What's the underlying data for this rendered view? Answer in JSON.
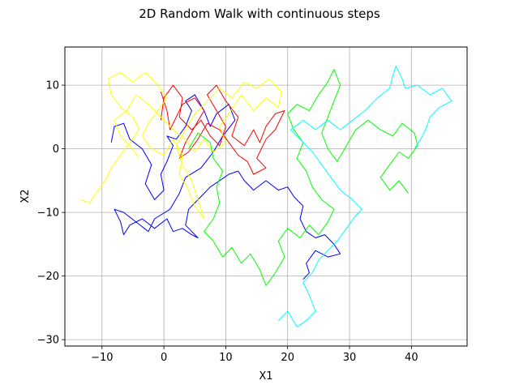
{
  "chart_data": {
    "type": "line",
    "title": "2D Random Walk with continuous steps",
    "xlabel": "X1",
    "ylabel": "X2",
    "xlim": [
      -16,
      49
    ],
    "ylim": [
      -31,
      16
    ],
    "xticks": [
      -10,
      0,
      10,
      20,
      30,
      40
    ],
    "yticks": [
      -30,
      -20,
      -10,
      0,
      10
    ],
    "grid": true,
    "series": [
      {
        "color": "#0000ff",
        "points": [
          [
            -8.5,
            1
          ],
          [
            -8,
            3.5
          ],
          [
            -6.5,
            4
          ],
          [
            -5.5,
            1.5
          ],
          [
            -3.5,
            0
          ],
          [
            -2,
            -2.5
          ],
          [
            -3,
            -5.5
          ],
          [
            -1.5,
            -8
          ],
          [
            0,
            -6.5
          ],
          [
            -0.5,
            -4
          ],
          [
            0.5,
            -2
          ],
          [
            1.5,
            0.5
          ],
          [
            0.5,
            2
          ],
          [
            2,
            1.5
          ],
          [
            3.5,
            3.5
          ],
          [
            4.5,
            6
          ],
          [
            3.5,
            7.5
          ],
          [
            5,
            8.5
          ],
          [
            6.5,
            6
          ],
          [
            7.5,
            3.5
          ],
          [
            8.5,
            5.5
          ],
          [
            10.5,
            7
          ],
          [
            11.5,
            4.5
          ],
          [
            9.5,
            2
          ],
          [
            8,
            -0.5
          ],
          [
            6,
            -3
          ],
          [
            3.5,
            -4.5
          ],
          [
            2.5,
            -7
          ],
          [
            1,
            -9.5
          ],
          [
            -1.5,
            -11
          ],
          [
            -2.5,
            -13
          ],
          [
            -4.5,
            -11.5
          ],
          [
            -6.5,
            -10
          ],
          [
            -8,
            -9.5
          ],
          [
            -7,
            -11.5
          ],
          [
            -6.5,
            -13.5
          ],
          [
            -5.5,
            -12
          ],
          [
            -3.5,
            -11
          ],
          [
            -1.5,
            -12.5
          ],
          [
            0.5,
            -11
          ],
          [
            1.5,
            -13
          ],
          [
            3,
            -12.5
          ],
          [
            4.5,
            -13.5
          ],
          [
            5.5,
            -14
          ],
          [
            3.5,
            -12
          ],
          [
            4,
            -9.5
          ],
          [
            6,
            -7.5
          ],
          [
            7.5,
            -6
          ],
          [
            9,
            -5
          ],
          [
            10.5,
            -4
          ],
          [
            12,
            -3.5
          ],
          [
            13,
            -5
          ],
          [
            14.5,
            -6.5
          ],
          [
            16.5,
            -5
          ],
          [
            18.5,
            -6.5
          ],
          [
            20,
            -6
          ],
          [
            21,
            -7.5
          ],
          [
            22.5,
            -9
          ],
          [
            22,
            -11
          ],
          [
            23,
            -13
          ],
          [
            24.5,
            -14
          ],
          [
            26,
            -13.5
          ],
          [
            27.5,
            -15
          ],
          [
            28.5,
            -16.5
          ],
          [
            26.5,
            -17
          ],
          [
            24.5,
            -16
          ],
          [
            23,
            -18
          ],
          [
            23.5,
            -19.5
          ],
          [
            22.5,
            -20.5
          ]
        ]
      },
      {
        "color": "#ff0000",
        "points": [
          [
            -0.5,
            4.5
          ],
          [
            0,
            8
          ],
          [
            1.5,
            10
          ],
          [
            3,
            8
          ],
          [
            2.5,
            5
          ],
          [
            4.5,
            3
          ],
          [
            6,
            4.5
          ],
          [
            7.5,
            2
          ],
          [
            9,
            0.5
          ],
          [
            10,
            3.5
          ],
          [
            8.5,
            6
          ],
          [
            7,
            8.5
          ],
          [
            8.5,
            10
          ],
          [
            10,
            7.5
          ],
          [
            12,
            5
          ],
          [
            11,
            2
          ],
          [
            13,
            0.5
          ],
          [
            14.5,
            3
          ],
          [
            15.5,
            1
          ],
          [
            16.5,
            3.5
          ],
          [
            18,
            5.5
          ],
          [
            19.5,
            6
          ],
          [
            18,
            3
          ],
          [
            16.5,
            1.5
          ],
          [
            15,
            -1.5
          ],
          [
            16.5,
            -3
          ],
          [
            14.5,
            -4
          ],
          [
            13.5,
            -2
          ],
          [
            12,
            -1
          ],
          [
            10.5,
            1
          ],
          [
            9,
            3
          ],
          [
            7,
            4
          ],
          [
            5.5,
            1.5
          ],
          [
            4,
            -0.5
          ],
          [
            2.5,
            -1.5
          ],
          [
            3.5,
            1
          ],
          [
            5,
            3.5
          ],
          [
            6.5,
            6
          ],
          [
            5,
            8
          ],
          [
            3,
            7
          ],
          [
            2,
            5
          ],
          [
            1,
            3
          ],
          [
            0.5,
            6
          ],
          [
            -0.5,
            9
          ]
        ]
      },
      {
        "color": "#ffff00",
        "points": [
          [
            -13.5,
            -8
          ],
          [
            -12,
            -8.5
          ],
          [
            -11,
            -7
          ],
          [
            -9.5,
            -5
          ],
          [
            -8.5,
            -3
          ],
          [
            -7,
            -1
          ],
          [
            -5.5,
            1
          ],
          [
            -4,
            3
          ],
          [
            -5,
            5
          ],
          [
            -7,
            6.5
          ],
          [
            -8.5,
            8.5
          ],
          [
            -9,
            11
          ],
          [
            -7,
            12
          ],
          [
            -5,
            10.5
          ],
          [
            -3,
            12
          ],
          [
            -1,
            10
          ],
          [
            0.5,
            8
          ],
          [
            -1,
            6
          ],
          [
            -2.5,
            4
          ],
          [
            -3.5,
            2
          ],
          [
            -2,
            0
          ],
          [
            0,
            -1
          ],
          [
            1.5,
            1.5
          ],
          [
            3,
            -1
          ],
          [
            2.5,
            -4
          ],
          [
            4,
            -6.5
          ],
          [
            5,
            -9
          ],
          [
            6.5,
            -11
          ],
          [
            5.5,
            -8
          ],
          [
            4.5,
            -5
          ],
          [
            3,
            -2.5
          ],
          [
            2,
            0.5
          ],
          [
            3.5,
            3
          ],
          [
            5,
            5.5
          ],
          [
            7,
            7.5
          ],
          [
            9,
            9.5
          ],
          [
            11,
            8
          ],
          [
            13,
            10.5
          ],
          [
            15,
            9.5
          ],
          [
            17,
            11
          ],
          [
            19,
            9
          ],
          [
            18.5,
            6.5
          ],
          [
            16.5,
            8
          ],
          [
            14.5,
            6
          ],
          [
            12.5,
            8.5
          ],
          [
            10.5,
            5.5
          ],
          [
            9,
            3.5
          ],
          [
            10,
            1
          ],
          [
            8,
            -0.5
          ],
          [
            6.5,
            1.5
          ],
          [
            5,
            -0.5
          ],
          [
            3.5,
            1.5
          ],
          [
            1.5,
            3
          ],
          [
            -0.5,
            5
          ],
          [
            -2.5,
            7
          ],
          [
            -4.5,
            8.5
          ],
          [
            -6,
            6
          ],
          [
            -8,
            4.5
          ],
          [
            -7,
            2
          ],
          [
            -5.5,
            0.5
          ],
          [
            -4,
            -1.5
          ]
        ]
      },
      {
        "color": "#00ff00",
        "points": [
          [
            4,
            0
          ],
          [
            5.5,
            2.5
          ],
          [
            7.5,
            1
          ],
          [
            8,
            -1.5
          ],
          [
            9.5,
            -3.5
          ],
          [
            8.5,
            -6
          ],
          [
            9,
            -8.5
          ],
          [
            8,
            -11
          ],
          [
            6.5,
            -13
          ],
          [
            8,
            -14.5
          ],
          [
            9.5,
            -17
          ],
          [
            11,
            -15.5
          ],
          [
            12.5,
            -18
          ],
          [
            14,
            -16.5
          ],
          [
            15.5,
            -19
          ],
          [
            16.5,
            -21.5
          ],
          [
            18,
            -19.5
          ],
          [
            19.5,
            -17
          ],
          [
            18.5,
            -14.5
          ],
          [
            20,
            -12.5
          ],
          [
            22,
            -14
          ],
          [
            23.5,
            -12
          ],
          [
            25,
            -13.5
          ],
          [
            26.5,
            -11.5
          ],
          [
            27.5,
            -9.5
          ],
          [
            25.5,
            -8
          ],
          [
            24,
            -6
          ],
          [
            23,
            -3.5
          ],
          [
            21.5,
            -1.5
          ],
          [
            22.5,
            1
          ],
          [
            21,
            3
          ],
          [
            20,
            5.5
          ],
          [
            21.5,
            7
          ],
          [
            23.5,
            6
          ],
          [
            25,
            8.5
          ],
          [
            26.5,
            10.5
          ],
          [
            27.5,
            12.5
          ],
          [
            28.5,
            10
          ],
          [
            27.5,
            7.5
          ],
          [
            26.5,
            5
          ],
          [
            25.5,
            2.5
          ],
          [
            26.5,
            0
          ],
          [
            28,
            -2
          ],
          [
            29.5,
            0.5
          ],
          [
            31,
            3
          ],
          [
            33,
            4.5
          ],
          [
            35,
            3
          ],
          [
            37,
            2
          ],
          [
            38.5,
            4
          ],
          [
            40.5,
            2.5
          ],
          [
            41,
            0.5
          ],
          [
            39.5,
            -1.5
          ],
          [
            38,
            -0.5
          ],
          [
            36.5,
            -2.5
          ],
          [
            35,
            -4.5
          ],
          [
            36.5,
            -6.5
          ],
          [
            38,
            -5
          ],
          [
            39.5,
            -7
          ]
        ]
      },
      {
        "color": "#00ffff",
        "points": [
          [
            18.5,
            -27
          ],
          [
            20,
            -25.5
          ],
          [
            21.5,
            -28
          ],
          [
            23,
            -27
          ],
          [
            24.5,
            -25.5
          ],
          [
            23.5,
            -23
          ],
          [
            22.5,
            -21
          ],
          [
            24,
            -19.5
          ],
          [
            25,
            -17.5
          ],
          [
            26.5,
            -16
          ],
          [
            28,
            -14.5
          ],
          [
            29.5,
            -12.5
          ],
          [
            31,
            -10.5
          ],
          [
            32,
            -9.5
          ],
          [
            30.5,
            -8
          ],
          [
            28.5,
            -6.5
          ],
          [
            27,
            -4.5
          ],
          [
            25.5,
            -2.5
          ],
          [
            24,
            -0.5
          ],
          [
            22,
            1.5
          ],
          [
            20.5,
            3
          ],
          [
            22.5,
            4.5
          ],
          [
            24.5,
            3
          ],
          [
            26.5,
            4.5
          ],
          [
            28.5,
            3
          ],
          [
            30.5,
            4.5
          ],
          [
            32.5,
            6
          ],
          [
            34.5,
            8
          ],
          [
            36.5,
            9.5
          ],
          [
            37,
            11.5
          ],
          [
            37.5,
            13
          ],
          [
            38.5,
            11
          ],
          [
            39,
            9.5
          ],
          [
            41,
            10
          ],
          [
            43,
            8.5
          ],
          [
            45,
            9.5
          ],
          [
            46.5,
            7.5
          ],
          [
            44.5,
            6.5
          ],
          [
            43,
            5
          ],
          [
            42.5,
            3.5
          ],
          [
            41.5,
            1.5
          ],
          [
            40.5,
            0
          ]
        ]
      }
    ]
  }
}
